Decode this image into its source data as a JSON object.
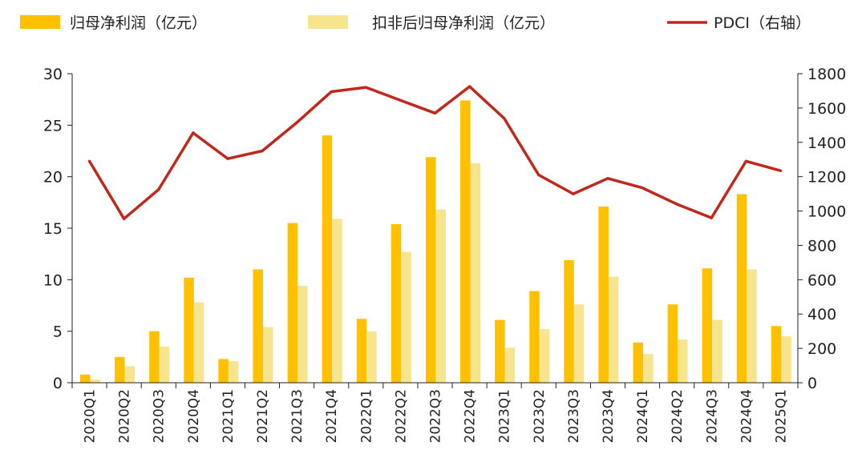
{
  "chart_data": {
    "type": "bar",
    "categories": [
      "2020Q1",
      "2020Q2",
      "2020Q3",
      "2020Q4",
      "2021Q1",
      "2021Q2",
      "2021Q3",
      "2021Q4",
      "2022Q1",
      "2022Q2",
      "2022Q3",
      "2022Q4",
      "2023Q1",
      "2023Q2",
      "2023Q3",
      "2023Q4",
      "2024Q1",
      "2024Q2",
      "2024Q3",
      "2024Q4",
      "2025Q1"
    ],
    "series": [
      {
        "name": "归母净利润（亿元）",
        "kind": "bar",
        "axis": "left",
        "color": "#FFC000",
        "values": [
          0.8,
          2.5,
          5.0,
          10.2,
          2.3,
          11.0,
          15.5,
          24.0,
          6.2,
          15.4,
          21.9,
          27.4,
          6.1,
          8.9,
          11.9,
          17.1,
          3.9,
          7.6,
          11.1,
          18.3,
          5.5
        ]
      },
      {
        "name": "扣非后归母净利润（亿元）",
        "kind": "bar",
        "axis": "left",
        "color": "#F7E48E",
        "values": [
          0.3,
          1.6,
          3.5,
          7.8,
          2.1,
          5.4,
          9.4,
          15.9,
          5.0,
          12.7,
          16.8,
          21.3,
          3.4,
          5.2,
          7.6,
          10.3,
          2.8,
          4.2,
          6.1,
          11.0,
          4.5
        ]
      },
      {
        "name": "PDCI（右轴）",
        "kind": "line",
        "axis": "right",
        "color": "#C0281C",
        "values": [
          1290,
          955,
          1125,
          1455,
          1305,
          1350,
          1515,
          1695,
          1720,
          1645,
          1570,
          1725,
          1540,
          1210,
          1100,
          1190,
          1135,
          1040,
          960,
          1290,
          1235
        ]
      }
    ],
    "y_left": {
      "min": 0,
      "max": 30,
      "ticks": [
        0,
        5,
        10,
        15,
        20,
        25,
        30
      ]
    },
    "y_right": {
      "min": 0,
      "max": 1800,
      "ticks": [
        0,
        200,
        400,
        600,
        800,
        1000,
        1200,
        1400,
        1600,
        1800
      ]
    },
    "legend": {
      "placement": "top"
    },
    "grid": false
  }
}
